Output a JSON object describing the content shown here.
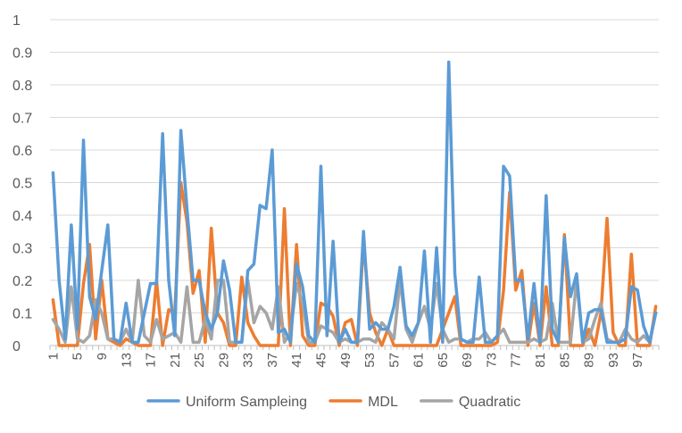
{
  "chart_data": {
    "type": "line",
    "title": "",
    "xlabel": "",
    "ylabel": "",
    "ylim": [
      0,
      1
    ],
    "y_ticks": [
      "0",
      "0.1",
      "0.2",
      "0.3",
      "0.4",
      "0.5",
      "0.6",
      "0.7",
      "0.8",
      "0.9",
      "1"
    ],
    "x_ticks": [
      "1",
      "5",
      "9",
      "13",
      "17",
      "21",
      "25",
      "29",
      "33",
      "37",
      "41",
      "45",
      "49",
      "53",
      "57",
      "61",
      "65",
      "69",
      "73",
      "77",
      "81",
      "85",
      "89",
      "93",
      "97"
    ],
    "x": [
      1,
      2,
      3,
      4,
      5,
      6,
      7,
      8,
      9,
      10,
      11,
      12,
      13,
      14,
      15,
      16,
      17,
      18,
      19,
      20,
      21,
      22,
      23,
      24,
      25,
      26,
      27,
      28,
      29,
      30,
      31,
      32,
      33,
      34,
      35,
      36,
      37,
      38,
      39,
      40,
      41,
      42,
      43,
      44,
      45,
      46,
      47,
      48,
      49,
      50,
      51,
      52,
      53,
      54,
      55,
      56,
      57,
      58,
      59,
      60,
      61,
      62,
      63,
      64,
      65,
      66,
      67,
      68,
      69,
      70,
      71,
      72,
      73,
      74,
      75,
      76,
      77,
      78,
      79,
      80,
      81,
      82,
      83,
      84,
      85,
      86,
      87,
      88,
      89,
      90,
      91,
      92,
      93,
      94,
      95,
      96,
      97,
      98,
      99,
      100
    ],
    "gridlines": true,
    "legend_position": "bottom",
    "series": [
      {
        "name": "Uniform Sampleing",
        "color": "#5B9BD5",
        "values": [
          0.53,
          0.2,
          0.02,
          0.37,
          0.05,
          0.63,
          0.15,
          0.08,
          0.23,
          0.37,
          0.02,
          0.01,
          0.13,
          0.01,
          0.01,
          0.1,
          0.19,
          0.19,
          0.65,
          0.2,
          0.03,
          0.66,
          0.42,
          0.2,
          0.2,
          0.1,
          0.05,
          0.1,
          0.26,
          0.17,
          0.01,
          0.01,
          0.23,
          0.25,
          0.43,
          0.42,
          0.6,
          0.04,
          0.05,
          0.01,
          0.25,
          0.18,
          0.03,
          0.01,
          0.55,
          0.03,
          0.32,
          0.01,
          0.05,
          0.01,
          0.01,
          0.35,
          0.05,
          0.07,
          0.05,
          0.05,
          0.12,
          0.24,
          0.06,
          0.03,
          0.07,
          0.29,
          0.01,
          0.3,
          0.01,
          0.87,
          0.22,
          0.02,
          0.01,
          0.01,
          0.21,
          0.01,
          0.01,
          0.03,
          0.55,
          0.52,
          0.2,
          0.2,
          0.02,
          0.19,
          0.01,
          0.46,
          0.05,
          0.01,
          0.33,
          0.15,
          0.22,
          0.01,
          0.1,
          0.11,
          0.11,
          0.01,
          0.01,
          0.01,
          0.02,
          0.18,
          0.17,
          0.06,
          0.01,
          0.1
        ]
      },
      {
        "name": "MDL",
        "color": "#ED7D31",
        "values": [
          0.14,
          0.0,
          0.0,
          0.0,
          0.0,
          0.19,
          0.31,
          0.02,
          0.2,
          0.02,
          0.01,
          0.0,
          0.02,
          0.01,
          0.0,
          0.0,
          0.0,
          0.2,
          0.0,
          0.11,
          0.1,
          0.5,
          0.38,
          0.16,
          0.23,
          0.01,
          0.36,
          0.1,
          0.07,
          0.0,
          0.0,
          0.21,
          0.07,
          0.03,
          0.0,
          0.0,
          0.0,
          0.0,
          0.42,
          0.0,
          0.31,
          0.03,
          0.0,
          0.0,
          0.13,
          0.12,
          0.09,
          0.0,
          0.07,
          0.08,
          0.0,
          0.32,
          0.1,
          0.04,
          0.0,
          0.05,
          0.0,
          0.0,
          0.0,
          0.0,
          0.0,
          0.0,
          0.0,
          0.0,
          0.05,
          0.1,
          0.15,
          0.0,
          0.0,
          0.0,
          0.0,
          0.0,
          0.0,
          0.01,
          0.17,
          0.47,
          0.17,
          0.23,
          0.0,
          0.13,
          0.0,
          0.18,
          0.0,
          0.0,
          0.34,
          0.0,
          0.0,
          0.0,
          0.05,
          0.0,
          0.1,
          0.39,
          0.04,
          0.0,
          0.0,
          0.28,
          0.0,
          0.0,
          0.0,
          0.12
        ]
      },
      {
        "name": "Quadratic",
        "color": "#A5A5A5",
        "values": [
          0.08,
          0.05,
          0.01,
          0.18,
          0.02,
          0.01,
          0.03,
          0.14,
          0.1,
          0.02,
          0.02,
          0.01,
          0.05,
          0.01,
          0.2,
          0.03,
          0.01,
          0.08,
          0.02,
          0.03,
          0.04,
          0.01,
          0.18,
          0.01,
          0.01,
          0.08,
          0.02,
          0.2,
          0.2,
          0.01,
          0.01,
          0.01,
          0.2,
          0.07,
          0.12,
          0.1,
          0.05,
          0.18,
          0.01,
          0.04,
          0.19,
          0.13,
          0.01,
          0.01,
          0.06,
          0.05,
          0.04,
          0.01,
          0.02,
          0.01,
          0.01,
          0.02,
          0.02,
          0.01,
          0.07,
          0.05,
          0.02,
          0.2,
          0.05,
          0.01,
          0.07,
          0.12,
          0.05,
          0.19,
          0.05,
          0.01,
          0.02,
          0.02,
          0.01,
          0.02,
          0.02,
          0.04,
          0.01,
          0.03,
          0.05,
          0.01,
          0.01,
          0.01,
          0.01,
          0.02,
          0.01,
          0.02,
          0.13,
          0.01,
          0.01,
          0.01,
          0.2,
          0.01,
          0.02,
          0.08,
          0.13,
          0.02,
          0.01,
          0.01,
          0.05,
          0.02,
          0.01,
          0.03,
          0.01,
          0.1
        ]
      }
    ]
  }
}
